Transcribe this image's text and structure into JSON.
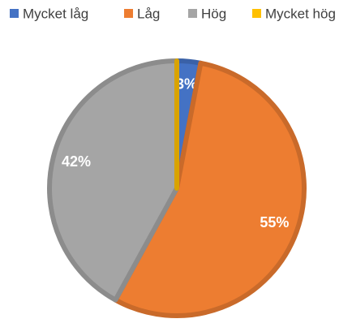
{
  "chart_data": {
    "type": "pie",
    "categories": [
      "Mycket låg",
      "Låg",
      "Hög",
      "Mycket hög"
    ],
    "values": [
      3,
      55,
      42,
      0
    ],
    "value_labels": [
      "3%",
      "55%",
      "42%",
      null
    ],
    "colors": [
      "#4472c4",
      "#ed7d31",
      "#a5a5a5",
      "#ffc000"
    ],
    "legend": "top"
  }
}
